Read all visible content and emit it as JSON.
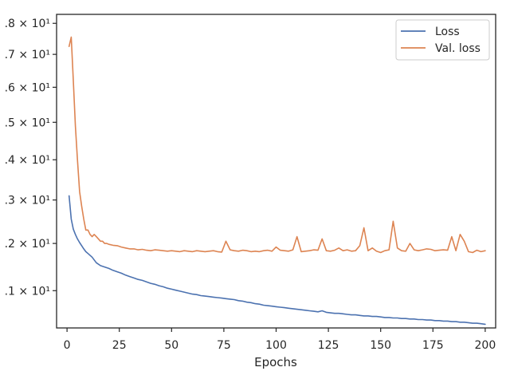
{
  "chart_data": {
    "type": "line",
    "title": "",
    "xlabel": "Epochs",
    "ylabel": "",
    "xlim": [
      -5,
      205
    ],
    "ylim": [
      10.27,
      18.3
    ],
    "yscale": "log",
    "grid": false,
    "legend_position": "top-right",
    "xticks": [
      0,
      25,
      50,
      75,
      100,
      125,
      150,
      175,
      200
    ],
    "xtick_labels": [
      "0",
      "25",
      "50",
      "75",
      "100",
      "125",
      "150",
      "175",
      "200"
    ],
    "yticks": [
      11,
      12,
      13,
      14,
      15,
      16,
      17,
      18
    ],
    "ytick_labels": [
      ".1 × 10¹",
      ".2 × 10¹",
      ".3 × 10¹",
      ".4 × 10¹",
      ".5 × 10¹",
      ".6 × 10¹",
      ".7 × 10¹",
      ".8 × 10¹"
    ],
    "series": [
      {
        "name": "Loss",
        "color": "#4c72b0",
        "x": [
          1,
          2,
          3,
          4,
          5,
          6,
          7,
          8,
          9,
          10,
          12,
          14,
          16,
          18,
          20,
          22,
          24,
          26,
          28,
          30,
          32,
          34,
          36,
          38,
          40,
          42,
          44,
          46,
          48,
          50,
          52,
          54,
          56,
          58,
          60,
          62,
          64,
          66,
          68,
          70,
          72,
          74,
          76,
          78,
          80,
          82,
          84,
          86,
          88,
          90,
          92,
          94,
          96,
          98,
          100,
          102,
          104,
          106,
          108,
          110,
          112,
          114,
          116,
          118,
          120,
          122,
          124,
          126,
          128,
          130,
          132,
          134,
          136,
          138,
          140,
          142,
          144,
          146,
          148,
          150,
          152,
          154,
          156,
          158,
          160,
          162,
          164,
          166,
          168,
          170,
          172,
          174,
          176,
          178,
          180,
          182,
          184,
          186,
          188,
          190,
          192,
          194,
          196,
          198,
          200
        ],
        "values": [
          13.1,
          12.55,
          12.32,
          12.2,
          12.1,
          12.02,
          11.95,
          11.88,
          11.82,
          11.78,
          11.7,
          11.58,
          11.52,
          11.49,
          11.46,
          11.42,
          11.39,
          11.36,
          11.32,
          11.29,
          11.26,
          11.23,
          11.21,
          11.18,
          11.15,
          11.13,
          11.1,
          11.08,
          11.05,
          11.03,
          11.01,
          10.99,
          10.97,
          10.95,
          10.93,
          10.92,
          10.9,
          10.89,
          10.88,
          10.87,
          10.86,
          10.85,
          10.84,
          10.83,
          10.82,
          10.8,
          10.79,
          10.77,
          10.76,
          10.74,
          10.73,
          10.71,
          10.7,
          10.69,
          10.68,
          10.67,
          10.66,
          10.65,
          10.64,
          10.63,
          10.62,
          10.61,
          10.6,
          10.59,
          10.58,
          10.6,
          10.57,
          10.56,
          10.55,
          10.55,
          10.54,
          10.53,
          10.52,
          10.52,
          10.51,
          10.5,
          10.5,
          10.49,
          10.49,
          10.48,
          10.47,
          10.47,
          10.46,
          10.46,
          10.45,
          10.45,
          10.44,
          10.44,
          10.43,
          10.43,
          10.42,
          10.42,
          10.41,
          10.41,
          10.4,
          10.4,
          10.39,
          10.39,
          10.38,
          10.38,
          10.37,
          10.36,
          10.36,
          10.35,
          10.34
        ]
      },
      {
        "name": "Val. loss",
        "color": "#dd8452",
        "x": [
          1,
          2,
          3,
          4,
          5,
          6,
          7,
          8,
          9,
          10,
          11,
          12,
          13,
          14,
          15,
          16,
          17,
          18,
          19,
          20,
          22,
          24,
          26,
          28,
          30,
          32,
          34,
          36,
          38,
          40,
          42,
          44,
          46,
          48,
          50,
          52,
          54,
          56,
          58,
          60,
          62,
          64,
          66,
          68,
          70,
          72,
          74,
          76,
          78,
          80,
          82,
          84,
          86,
          88,
          90,
          92,
          94,
          96,
          98,
          100,
          102,
          104,
          106,
          108,
          110,
          112,
          114,
          116,
          118,
          120,
          122,
          124,
          126,
          128,
          130,
          132,
          134,
          136,
          138,
          140,
          142,
          144,
          146,
          148,
          150,
          152,
          154,
          156,
          158,
          160,
          162,
          164,
          166,
          168,
          170,
          172,
          174,
          176,
          178,
          180,
          182,
          184,
          186,
          188,
          190,
          192,
          194,
          196,
          198,
          200
        ],
        "values": [
          17.25,
          17.55,
          16.2,
          14.9,
          14.0,
          13.2,
          12.85,
          12.55,
          12.3,
          12.3,
          12.2,
          12.15,
          12.2,
          12.15,
          12.1,
          12.05,
          12.05,
          12.0,
          12.0,
          11.98,
          11.96,
          11.95,
          11.92,
          11.9,
          11.88,
          11.88,
          11.86,
          11.87,
          11.85,
          11.84,
          11.86,
          11.85,
          11.84,
          11.83,
          11.84,
          11.83,
          11.82,
          11.84,
          11.83,
          11.82,
          11.84,
          11.83,
          11.82,
          11.83,
          11.84,
          11.82,
          11.81,
          12.05,
          11.86,
          11.84,
          11.83,
          11.85,
          11.84,
          11.82,
          11.83,
          11.82,
          11.84,
          11.85,
          11.83,
          11.92,
          11.85,
          11.84,
          11.83,
          11.86,
          12.15,
          11.82,
          11.83,
          11.84,
          11.86,
          11.85,
          12.1,
          11.84,
          11.83,
          11.85,
          11.9,
          11.84,
          11.86,
          11.83,
          11.84,
          11.95,
          12.35,
          11.84,
          11.9,
          11.83,
          11.8,
          11.84,
          11.86,
          12.5,
          11.9,
          11.84,
          11.83,
          12.0,
          11.86,
          11.84,
          11.86,
          11.88,
          11.87,
          11.84,
          11.85,
          11.86,
          11.85,
          12.15,
          11.84,
          12.2,
          12.05,
          11.82,
          11.8,
          11.85,
          11.82,
          11.84
        ]
      }
    ]
  }
}
